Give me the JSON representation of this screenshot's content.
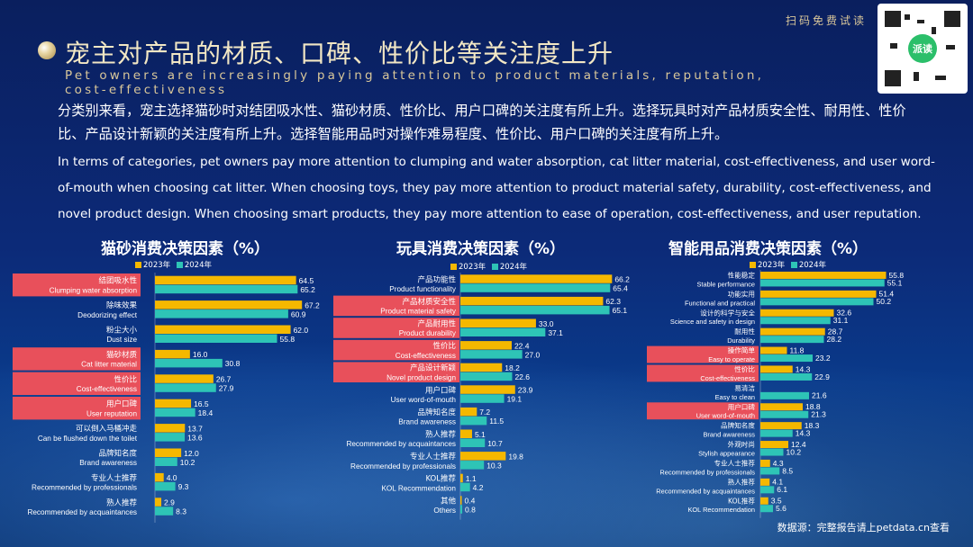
{
  "header": {
    "title": "宠主对产品的材质、口碑、性价比等关注度上升",
    "subtitle": "Pet owners are increasingly paying attention to product materials, reputation, cost-effectiveness",
    "top_note": "扫码免费试读",
    "qr_label": "派读"
  },
  "body": {
    "cn": "分类别来看，宠主选择猫砂时对结团吸水性、猫砂材质、性价比、用户口碑的关注度有所上升。选择玩具时对产品材质安全性、耐用性、性价比、产品设计新颖的关注度有所上升。选择智能用品时对操作难易程度、性价比、用户口碑的关注度有所上升。",
    "en": "In terms of categories, pet owners pay more attention to clumping and water absorption, cat litter material, cost-effectiveness, and user word-of-mouth when choosing cat litter. When choosing toys, they pay more attention to product material safety, durability, cost-effectiveness, and novel product design. When choosing smart products, they pay more attention to ease of operation, cost-effectiveness, and user reputation."
  },
  "source": "数据源：完整报告请上petdata.cn查看",
  "colors": {
    "y2023": "#f5b800",
    "y2024": "#2ec4b6",
    "highlight": "#e8505b"
  },
  "chart_data": [
    {
      "type": "bar",
      "title": "猫砂消费决策因素（%）",
      "legend": [
        "2023年",
        "2024年"
      ],
      "categories": [
        {
          "cn": "结团吸水性",
          "en": "Clumping water absorption",
          "highlight": true
        },
        {
          "cn": "除味效果",
          "en": "Deodorizing effect",
          "highlight": false
        },
        {
          "cn": "粉尘大小",
          "en": "Dust size",
          "highlight": false
        },
        {
          "cn": "猫砂材质",
          "en": "Cat litter material",
          "highlight": true
        },
        {
          "cn": "性价比",
          "en": "Cost-effectiveness",
          "highlight": true
        },
        {
          "cn": "用户口碑",
          "en": "User reputation",
          "highlight": true
        },
        {
          "cn": "可以倒入马桶冲走",
          "en": "Can be flushed down the toilet",
          "highlight": false
        },
        {
          "cn": "品牌知名度",
          "en": "Brand awareness",
          "highlight": false
        },
        {
          "cn": "专业人士推荐",
          "en": "Recommended by professionals",
          "highlight": false
        },
        {
          "cn": "熟人推荐",
          "en": "Recommended by acquaintances",
          "highlight": false
        }
      ],
      "series": [
        {
          "name": "2023年",
          "values": [
            64.5,
            67.2,
            62.0,
            16.0,
            26.7,
            16.5,
            13.7,
            12.0,
            4.0,
            2.9
          ]
        },
        {
          "name": "2024年",
          "values": [
            65.2,
            60.9,
            55.8,
            30.8,
            27.9,
            18.4,
            13.6,
            10.2,
            9.3,
            8.3
          ]
        }
      ],
      "labels": [
        [
          "64.5",
          "67.2",
          "62.0",
          "16.0",
          "26.7",
          "16.5",
          "13.7",
          "12.0",
          "4.0",
          "2.9"
        ],
        [
          "65.2",
          "60.9",
          "55.8",
          "30.8",
          "27.9",
          "18.4",
          "13.6",
          "10.2",
          "9.3",
          "8.3"
        ]
      ]
    },
    {
      "type": "bar",
      "title": "玩具消费决策因素（%）",
      "legend": [
        "2023年",
        "2024年"
      ],
      "categories": [
        {
          "cn": "产品功能性",
          "en": "Product functionality",
          "highlight": false
        },
        {
          "cn": "产品材质安全性",
          "en": "Product material safety",
          "highlight": true
        },
        {
          "cn": "产品耐用性",
          "en": "Product durability",
          "highlight": true
        },
        {
          "cn": "性价比",
          "en": "Cost-effectiveness",
          "highlight": true
        },
        {
          "cn": "产品设计新颖",
          "en": "Novel product design",
          "highlight": true
        },
        {
          "cn": "用户口碑",
          "en": "User word-of-mouth",
          "highlight": false
        },
        {
          "cn": "品牌知名度",
          "en": "Brand awareness",
          "highlight": false
        },
        {
          "cn": "熟人推荐",
          "en": "Recommended by acquaintances",
          "highlight": false
        },
        {
          "cn": "专业人士推荐",
          "en": "Recommended by professionals",
          "highlight": false
        },
        {
          "cn": "KOL推荐",
          "en": "KOL Recommendation",
          "highlight": false
        },
        {
          "cn": "其他",
          "en": "Others",
          "highlight": false
        }
      ],
      "series": [
        {
          "name": "2023年",
          "values": [
            66.2,
            62.3,
            33.0,
            22.4,
            18.2,
            23.9,
            7.2,
            5.1,
            19.8,
            1.1,
            0.4
          ]
        },
        {
          "name": "2024年",
          "values": [
            65.4,
            65.1,
            37.1,
            27.0,
            22.6,
            19.1,
            11.5,
            10.7,
            10.3,
            4.2,
            0.8
          ]
        }
      ],
      "labels": [
        [
          "66.2",
          "62.3",
          "33.0",
          "22.4",
          "18.2",
          "23.9",
          "7.2",
          "5.1",
          "19.8",
          "1.1",
          "0.4"
        ],
        [
          "65.4",
          "65.1",
          "37.1",
          "27.0",
          "22.6",
          "19.1",
          "11.5",
          "10.7",
          "10.3",
          "4.2",
          "0.8"
        ]
      ]
    },
    {
      "type": "bar",
      "title": "智能用品消费决策因素（%）",
      "legend": [
        "2023年",
        "2024年"
      ],
      "categories": [
        {
          "cn": "性能稳定",
          "en": "Stable performance",
          "highlight": false
        },
        {
          "cn": "功能实用",
          "en": "Functional and practical",
          "highlight": false
        },
        {
          "cn": "设计的科学与安全",
          "en": "Science and safety in design",
          "highlight": false
        },
        {
          "cn": "耐用性",
          "en": "Durability",
          "highlight": false
        },
        {
          "cn": "操作简单",
          "en": "Easy to operate",
          "highlight": true
        },
        {
          "cn": "性价比",
          "en": "Cost-effectiveness",
          "highlight": true
        },
        {
          "cn": "易清洁",
          "en": "Easy to clean",
          "highlight": false
        },
        {
          "cn": "用户口碑",
          "en": "User word-of-mouth",
          "highlight": true
        },
        {
          "cn": "品牌知名度",
          "en": "Brand awareness",
          "highlight": false
        },
        {
          "cn": "外观时尚",
          "en": "Stylish appearance",
          "highlight": false
        },
        {
          "cn": "专业人士推荐",
          "en": "Recommended by professionals",
          "highlight": false
        },
        {
          "cn": "熟人推荐",
          "en": "Recommended by acquaintances",
          "highlight": false
        },
        {
          "cn": "KOL推荐",
          "en": "KOL Recommendation",
          "highlight": false
        }
      ],
      "series": [
        {
          "name": "2023年",
          "values": [
            55.8,
            51.4,
            32.6,
            28.7,
            11.8,
            14.3,
            null,
            18.8,
            18.3,
            12.4,
            4.3,
            4.1,
            3.5
          ]
        },
        {
          "name": "2024年",
          "values": [
            55.1,
            50.2,
            31.1,
            28.2,
            23.2,
            22.9,
            21.6,
            21.3,
            14.3,
            10.2,
            8.5,
            6.1,
            5.6
          ]
        }
      ],
      "labels": [
        [
          "55.8",
          "51.4",
          "32.6",
          "28.7",
          "11.8",
          "14.3",
          "",
          "18.8",
          "18.3",
          "12.4",
          "4.3",
          "4.1",
          "3.5"
        ],
        [
          "55.1",
          "50.2",
          "31.1",
          "28.2",
          "23.2",
          "22.9",
          "21.6",
          "21.3",
          "14.3",
          "10.2",
          "8.5",
          "6.1",
          "5.6"
        ]
      ]
    }
  ]
}
